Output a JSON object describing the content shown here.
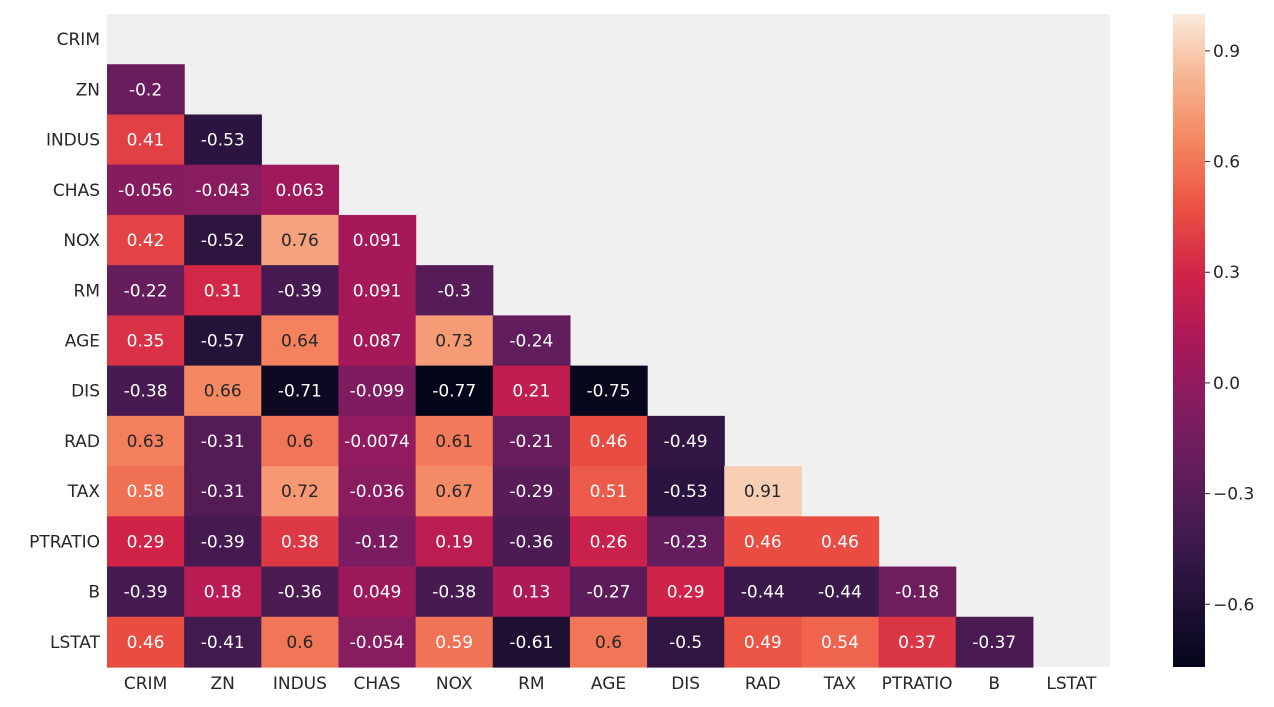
{
  "chart_data": {
    "type": "heatmap",
    "variables": [
      "CRIM",
      "ZN",
      "INDUS",
      "CHAS",
      "NOX",
      "RM",
      "AGE",
      "DIS",
      "RAD",
      "TAX",
      "PTRATIO",
      "B",
      "LSTAT"
    ],
    "mask": "upper-triangle-and-diagonal",
    "rows": [
      [],
      [
        "-0.2"
      ],
      [
        "0.41",
        "-0.53"
      ],
      [
        "-0.056",
        "-0.043",
        "0.063"
      ],
      [
        "0.42",
        "-0.52",
        "0.76",
        "0.091"
      ],
      [
        "-0.22",
        "0.31",
        "-0.39",
        "0.091",
        "-0.3"
      ],
      [
        "0.35",
        "-0.57",
        "0.64",
        "0.087",
        "0.73",
        "-0.24"
      ],
      [
        "-0.38",
        "0.66",
        "-0.71",
        "-0.099",
        "-0.77",
        "0.21",
        "-0.75"
      ],
      [
        "0.63",
        "-0.31",
        "0.6",
        "-0.0074",
        "0.61",
        "-0.21",
        "0.46",
        "-0.49"
      ],
      [
        "0.58",
        "-0.31",
        "0.72",
        "-0.036",
        "0.67",
        "-0.29",
        "0.51",
        "-0.53",
        "0.91"
      ],
      [
        "0.29",
        "-0.39",
        "0.38",
        "-0.12",
        "0.19",
        "-0.36",
        "0.26",
        "-0.23",
        "0.46",
        "0.46"
      ],
      [
        "-0.39",
        "0.18",
        "-0.36",
        "0.049",
        "-0.38",
        "0.13",
        "-0.27",
        "0.29",
        "-0.44",
        "-0.44",
        "-0.18"
      ],
      [
        "0.46",
        "-0.41",
        "0.6",
        "-0.054",
        "0.59",
        "-0.61",
        "0.6",
        "-0.5",
        "0.49",
        "0.54",
        "0.37",
        "-0.37"
      ]
    ],
    "colorbar": {
      "vmin": -0.77,
      "vmax": 1.0,
      "ticks": [
        {
          "value": 0.9,
          "label": "0.9"
        },
        {
          "value": 0.6,
          "label": "0.6"
        },
        {
          "value": 0.3,
          "label": "0.3"
        },
        {
          "value": 0.0,
          "label": "0.0"
        },
        {
          "value": -0.3,
          "label": "−0.3"
        },
        {
          "value": -0.6,
          "label": "−0.6"
        }
      ]
    },
    "colormap": "rocket",
    "background_color": "#f0f0f0"
  }
}
